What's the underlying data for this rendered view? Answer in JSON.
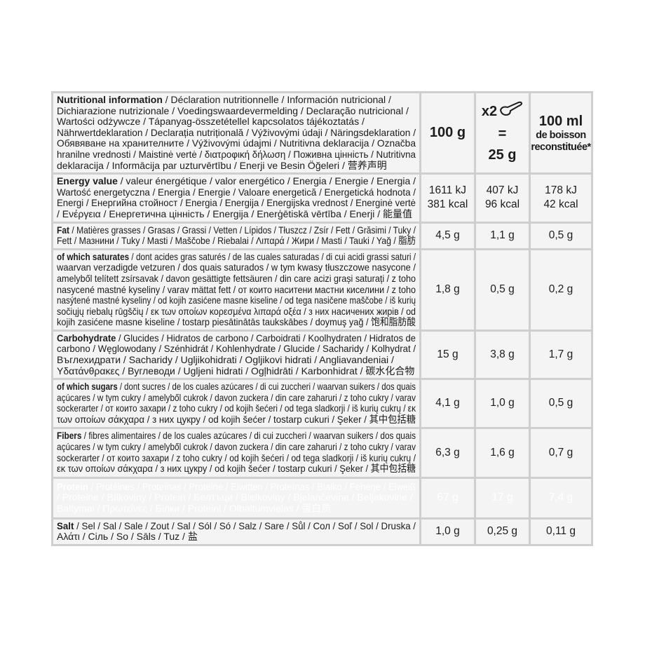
{
  "header": {
    "name": "Nutritional information",
    "lines": [
      " / Déclaration nutritionnelle / Información nutricional /",
      "Dichiarazione nutrizionale / Voedingswaardevermelding / Declaração nutricional /",
      "Wartości odżywcze / Tápanyag-összetétellel kapcsolatos tájékoztatás /",
      "Nährwertdeklaration / Declarația nutrițională / Výživovými údaji / Näringsdeklaration /",
      "Обявяване на хранителните / Výživovými údajmi / Nutritivna deklaracija / Označba",
      "hranilne vrednosti / Maistinė vertė / διατροφική δήλωση / Поживна цінність / Nutritivna",
      "deklaracija / Informācija par uzturvērtību / Enerji ve Besin Öğeleri / 营养声明"
    ],
    "col1": "100 g",
    "col2_multiplier": "x2",
    "col2_equals": "=",
    "col2_amount": "25 g",
    "col2_icon": "scoop-icon",
    "col3_amount": "100 ml",
    "col3_sub": "de boisson reconstituée*"
  },
  "rows": [
    {
      "name": "Energy value",
      "lines": [
        " / valeur énergétique / valor energético / Energia / Energie / Energia /",
        "Wartość energetyczna / Energia / Energie / Valoare energetică / Energetická hodnota /",
        "Energi / Енергийна стойност / Energia / Energija / Energijska vrednost / Energinė vertė",
        "/ Ενέργεια / Енергетична цінність / Energija / Enerģētiskā vērtība / Enerji / 能量值"
      ],
      "values": [
        "1611 kJ\n381 kcal",
        "407 kJ\n96 kcal",
        "178 kJ\n42 kcal"
      ],
      "height": 62
    },
    {
      "name": "Fat",
      "lines": [
        " / Matières grasses / Grasas / Grassi / Vetten / Lípidos / Tłuszcz / Zsír / Fett / Grăsimi / Tuky /",
        "Fett / Мазнини / Tuky / Masti / Maščobe / Riebalai / Λιπαρά / Жири / Masti / Tauki / Yağ / 脂肪"
      ],
      "values": [
        "4,5 g",
        "1,1 g",
        "0,5 g"
      ],
      "height": 35
    },
    {
      "name": "of which saturates",
      "lines": [
        " / dont acides gras saturés / de las cuales saturadas  / di cui acidi grassi saturi /",
        "waarvan verzadigde vetzuren / dos quais saturados / w tym kwasy tłuszczowe nasycone /",
        "amelyből telített zsírsavak / davon gesättigte fettsäuren / din care acizi grași saturați / z toho",
        "nasycené mastné kyseliny / varav mättat fett / от които наситени мастни киселини / z toho",
        "nasýtené mastné kyseliny  / od kojih zasićene masne kiseline / od tega nasičene maščobe / iš kurių",
        "sočiųjų riebalų rūgščių / εκ των οποίων κορεσμένα λιπαρά οξέα / з них насичених жирів / od",
        "kojih zasićene masne kiseline / tostarp piesātinātās taukskābes / doymuş yağ / 饱和脂肪酸"
      ],
      "values": [
        "1,8 g",
        "0,5 g",
        "0,2 g"
      ],
      "height": 109
    },
    {
      "name": "Carbohydrate",
      "lines": [
        " / Glucides / Hidratos de carbono / Carboidrati / Koolhydraten / Hidratos de",
        "carbono / Węglowodany / Szénhidrát / Kohlenhydrate / Glucide / Sacharidy / Kolhydrat /",
        "Въглехидрати / Sacharidy / Ugljikohidrati / Ogljikovi hidrati / Angliavandeniai /",
        "Υδατάνθρακες / Вуглеводи / Ugljeni hidrati / Ogļhidrāti / Karbonhidrat / 碳水化合物"
      ],
      "values": [
        "15 g",
        "3,8 g",
        "1,7 g"
      ],
      "height": 62
    },
    {
      "name": "of which sugars",
      "lines": [
        " / dont sucres / de los cuales azúcares / di cui zuccheri / waarvan suikers / dos quais",
        "açúcares / w tym cukry / amelyből cukrok / davon zuckera / din care zaharuri / z toho cukry / varav",
        "sockerarter / от които захари / z toho cukry / od kojih šećeri / od tega sladkorji / iš kurių cukrų / εκ",
        "των οποίων σάκχαρα / з них цукру / od kojih šećer / tostarp cukuri / Şeker / 其中包括糖"
      ],
      "values": [
        "4,1 g",
        "1,0 g",
        "0,5 g"
      ],
      "height": 64
    },
    {
      "name": "Fibers",
      "lines": [
        " / fibres alimentaires / de los cuales azúcares / di cui zuccheri / waarvan suikers / dos quais",
        "açúcares / w tym cukry / amelyből cukrok / davon zuckera / din care zaharuri / z toho cukry / varav",
        "sockerarter / от които захари / z toho cukry / od kojih šećeri / od tega sladkorji / iš kurių cukrų /",
        "εκ των οποίων σάκχαρα / з них цукру / od kojih šećer / tostarp cukuri / Şeker / 其中包括糖"
      ],
      "values": [
        "6,3 g",
        "1,6 g",
        "0,7 g"
      ],
      "height": 68
    },
    {
      "name": "Protein",
      "lines": [
        " / Protéines / Proteínas / Proteine / Eiwitten / Proteínas / Białko / Fehérje / Eiweiß",
        "/ Proteine / Bílkoviny / Protein / Белтъци / Bielkoviny / Bjelančevine / Beljakovine /",
        "Baltymai / Πρωτεΐνες / Білки / Proteini / Olbaltumvielas / 蛋白质"
      ],
      "values": [
        "67 g",
        "17 g",
        "7,4 g"
      ],
      "height": 55,
      "highlight": true
    },
    {
      "name": "Salt",
      "lines": [
        " / Sel / Sal / Sale / Zout / Sal / Sól / Só / Salz / Sare / Sůl / Сол / Soľ / Sol / Druska  /",
        "Αλάτι / Сіль / So / Sāls / Tuz / 盐"
      ],
      "values": [
        "1,0 g",
        "0,25 g",
        "0,11 g"
      ],
      "height": 35
    }
  ],
  "colors": {
    "highlight_row_bg": "#1b1f29",
    "cell_bg": "#f4f4f4",
    "border": "#cfcfcf"
  }
}
